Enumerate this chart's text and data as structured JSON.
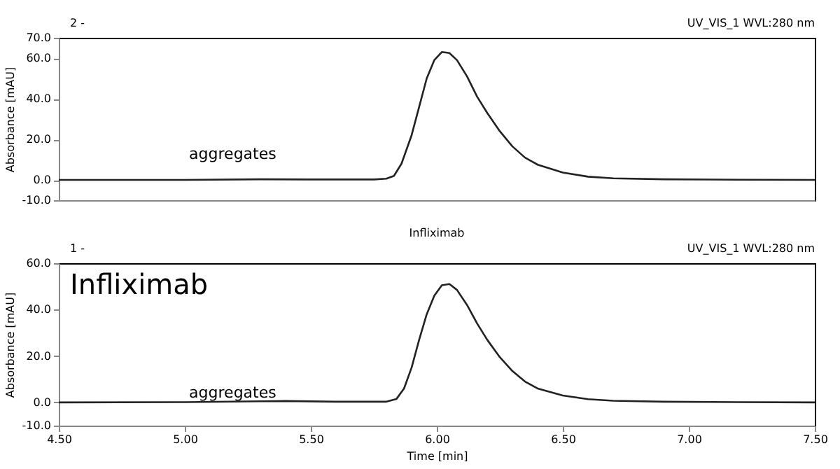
{
  "chart_data": [
    {
      "type": "line",
      "title": null,
      "ylabel": "Absorbance [mAU]",
      "annotations": [
        "2 -",
        "UV_VIS_1 WVL:280 nm",
        "aggregates"
      ],
      "xlim": [
        4.5,
        7.5
      ],
      "ylim": [
        -10,
        70
      ],
      "yticks": [
        {
          "value": -10,
          "label": "-10.0"
        },
        {
          "value": 0,
          "label": "0.0"
        },
        {
          "value": 20,
          "label": "20.0"
        },
        {
          "value": 40,
          "label": "40.0"
        },
        {
          "value": 60,
          "label": "60.0"
        },
        {
          "value": 70,
          "label": "70.0"
        }
      ],
      "tick_labels": "y",
      "grid": false,
      "marker": "none",
      "line_style": "solid",
      "series": [
        {
          "color": "#222222",
          "x": [
            4.5,
            5.0,
            5.3,
            5.5,
            5.75,
            5.8,
            5.83,
            5.86,
            5.9,
            5.93,
            5.96,
            5.99,
            6.02,
            6.05,
            6.08,
            6.12,
            6.16,
            6.2,
            6.25,
            6.3,
            6.35,
            6.4,
            6.5,
            6.6,
            6.7,
            6.9,
            7.2,
            7.5
          ],
          "values": [
            0,
            0,
            0.3,
            0.2,
            0.2,
            0.6,
            2,
            8,
            22,
            36,
            50,
            59,
            63,
            62.5,
            59,
            51,
            41,
            33,
            24,
            16.5,
            11,
            7.5,
            3.6,
            1.6,
            0.8,
            0.3,
            0.1,
            0
          ]
        }
      ]
    },
    {
      "type": "line",
      "title": "Infliximab",
      "xlabel": "Time [min]",
      "ylabel": "Absorbance [mAU]",
      "annotations": [
        "1 -",
        "UV_VIS_1 WVL:280 nm",
        "Infliximab",
        "aggregates"
      ],
      "xlim": [
        4.5,
        7.5
      ],
      "ylim": [
        -10,
        60
      ],
      "yticks": [
        {
          "value": -10,
          "label": "-10.0"
        },
        {
          "value": 0,
          "label": "0.0"
        },
        {
          "value": 20,
          "label": "20.0"
        },
        {
          "value": 40,
          "label": "40.0"
        },
        {
          "value": 60,
          "label": "60.0"
        }
      ],
      "xticks": [
        {
          "value": 4.5,
          "label": "4.50"
        },
        {
          "value": 5.0,
          "label": "5.00"
        },
        {
          "value": 5.5,
          "label": "5.50"
        },
        {
          "value": 6.0,
          "label": "6.00"
        },
        {
          "value": 6.5,
          "label": "6.50"
        },
        {
          "value": 7.0,
          "label": "7.00"
        },
        {
          "value": 7.5,
          "label": "7.50"
        }
      ],
      "grid": false,
      "marker": "none",
      "line_style": "solid",
      "series": [
        {
          "color": "#222222",
          "x": [
            4.5,
            5.0,
            5.3,
            5.4,
            5.6,
            5.8,
            5.84,
            5.87,
            5.9,
            5.93,
            5.96,
            5.99,
            6.02,
            6.05,
            6.08,
            6.12,
            6.16,
            6.2,
            6.25,
            6.3,
            6.35,
            6.4,
            6.5,
            6.6,
            6.7,
            6.9,
            7.2,
            7.5
          ],
          "values": [
            0,
            0.1,
            0.5,
            0.6,
            0.3,
            0.3,
            1.5,
            6,
            15,
            27,
            38,
            46,
            50.5,
            51,
            48.5,
            42,
            34,
            27,
            19.5,
            13.5,
            9,
            6,
            3,
            1.4,
            0.7,
            0.3,
            0.1,
            0
          ]
        }
      ]
    }
  ]
}
